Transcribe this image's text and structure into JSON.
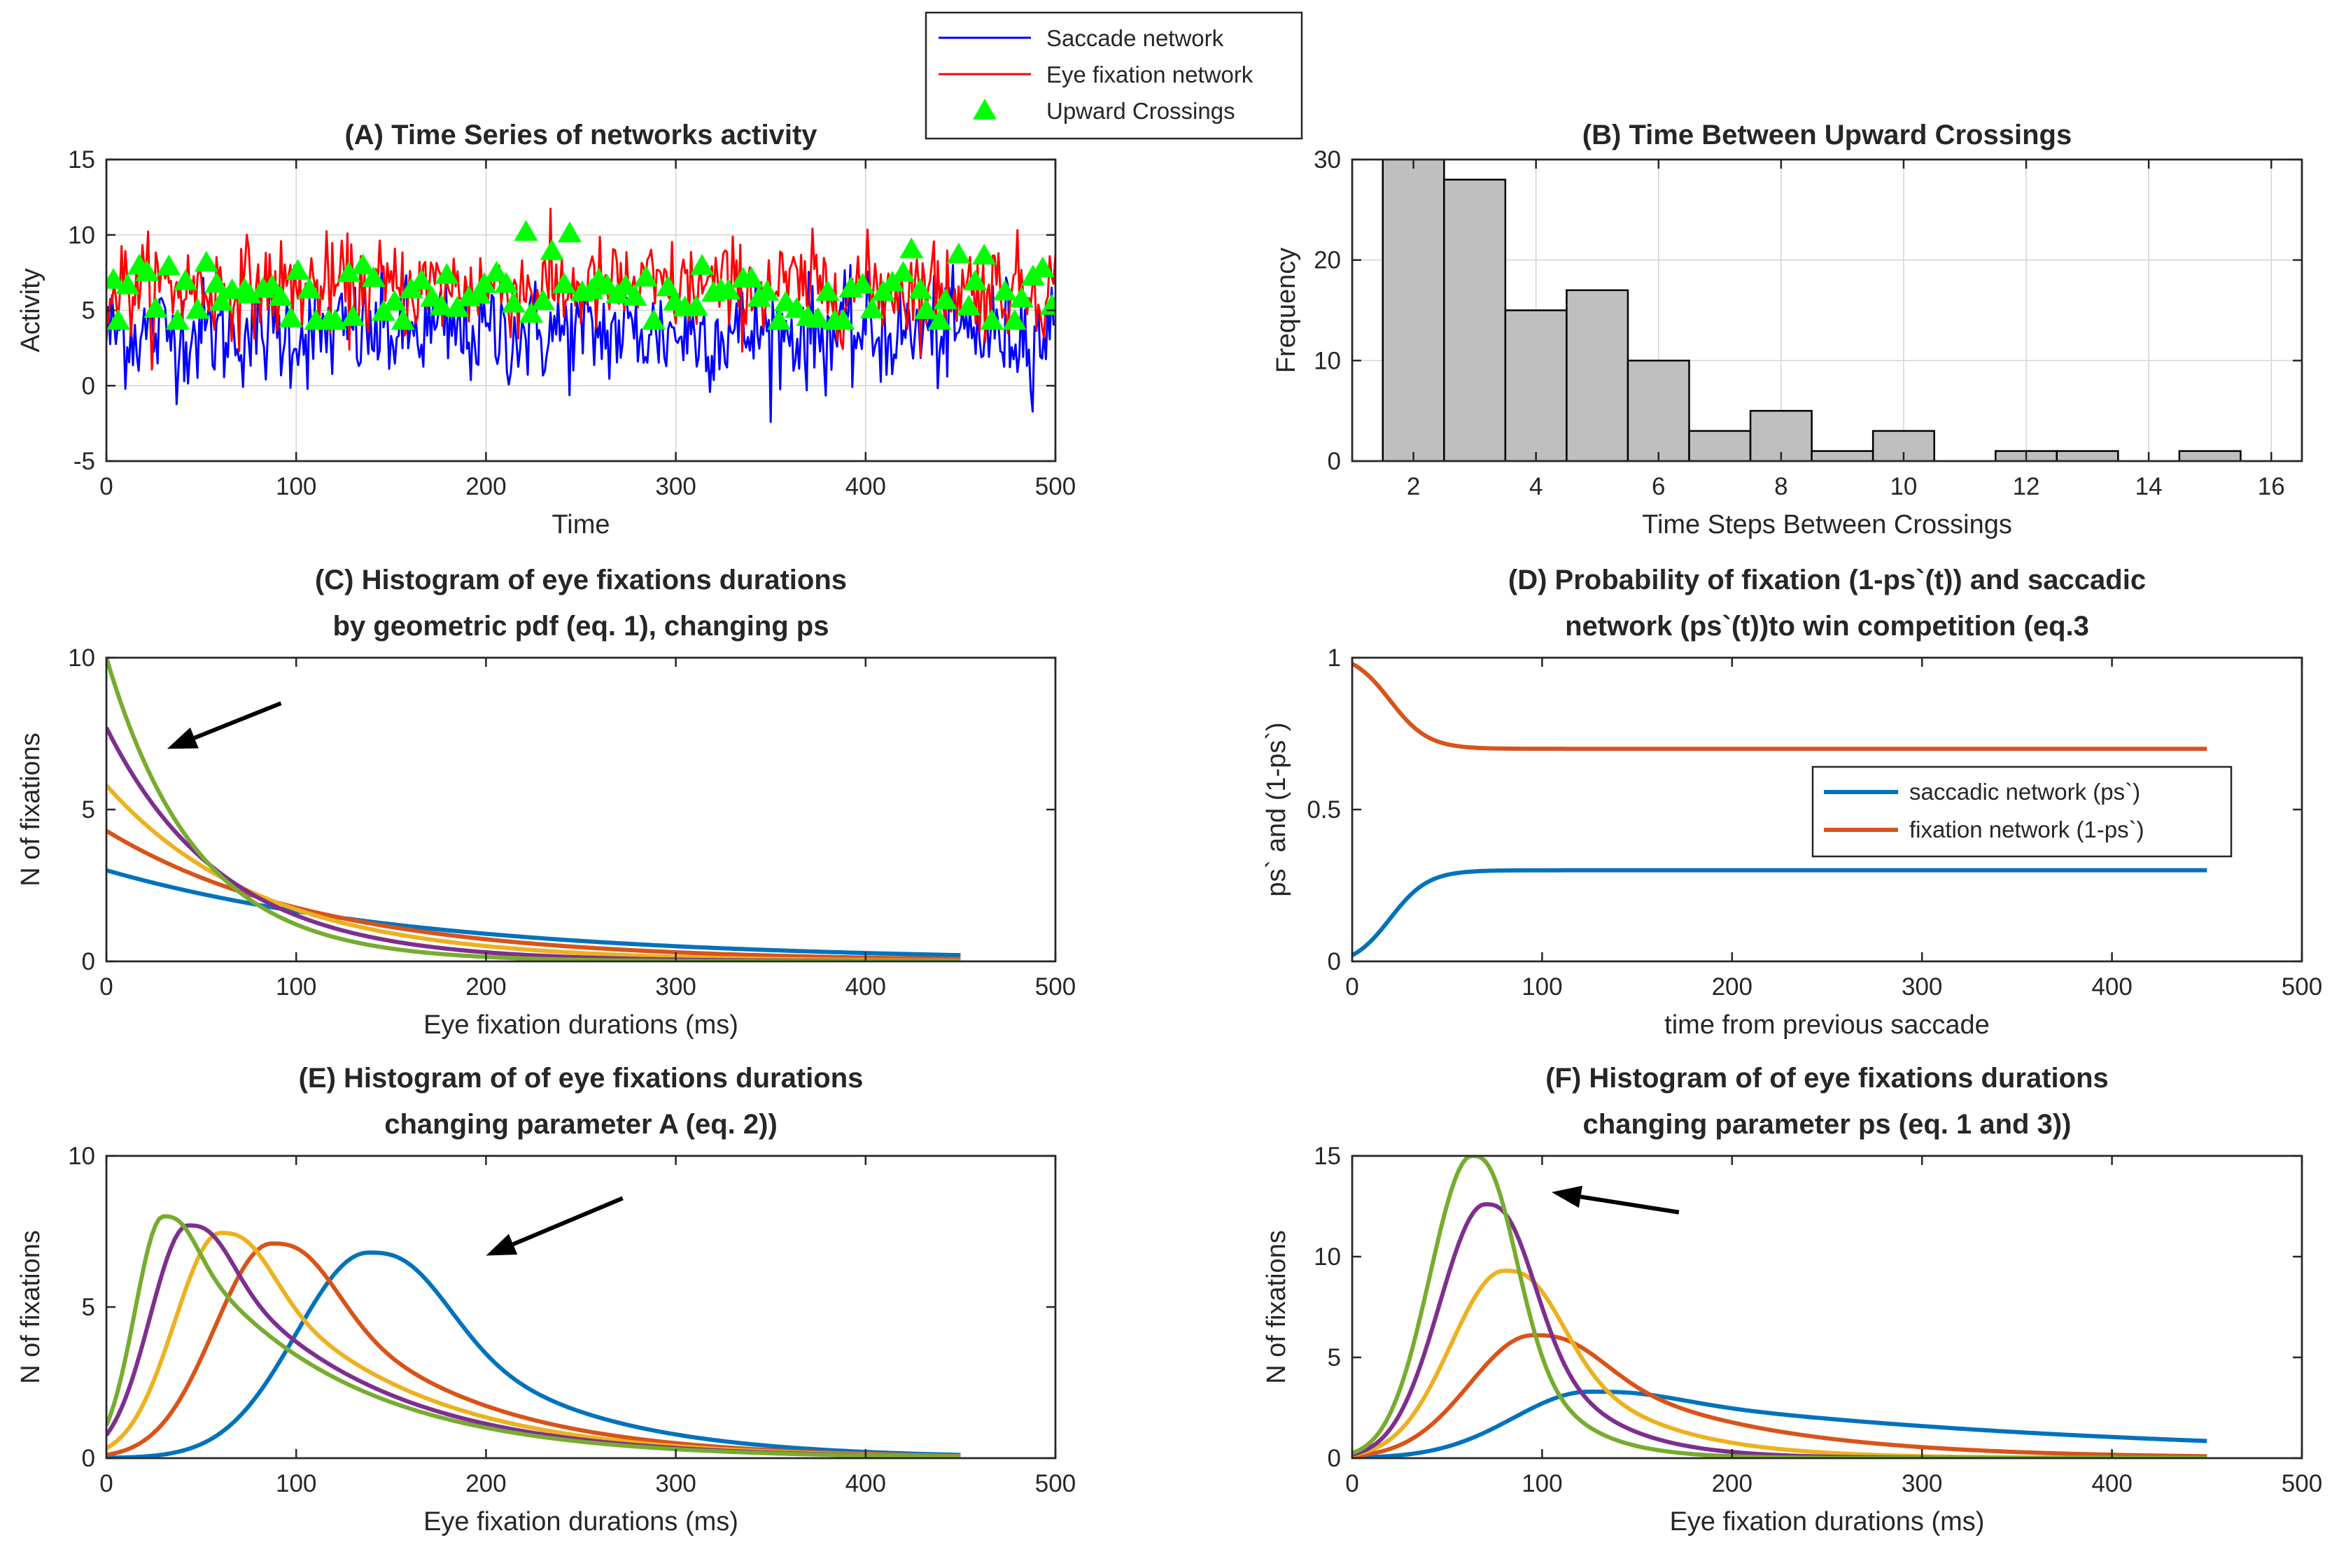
{
  "colors": {
    "blue": "#0000ff",
    "red": "#ff0000",
    "green": "#00ff00",
    "c1": "#0072bd",
    "c2": "#d95319",
    "c3": "#edb120",
    "c4": "#7e2f8e",
    "c5": "#77ac30",
    "hist_fill": "#bfbfbf",
    "axis": "#262626",
    "grid": "#d4d4d4",
    "arrow": "#000000"
  },
  "chart_data": [
    {
      "id": "A",
      "type": "line",
      "title": "(A) Time Series of networks activity",
      "xlabel": "Time",
      "ylabel": "Activity",
      "xlim": [
        0,
        500
      ],
      "ylim": [
        -5,
        15
      ],
      "xticks": [
        0,
        100,
        200,
        300,
        400,
        500
      ],
      "yticks": [
        -5,
        0,
        5,
        10,
        15
      ],
      "grid": true,
      "series": [
        {
          "name": "Saccade network",
          "color": "#0000ff",
          "mean": 3.5,
          "std": 1.8,
          "n": 500
        },
        {
          "name": "Eye fixation network",
          "color": "#ff0000",
          "mean": 6.5,
          "std": 1.6,
          "n": 500
        },
        {
          "name": "Upward Crossings",
          "color": "#00ff00",
          "marker": "triangle",
          "count": 101
        }
      ],
      "legend": {
        "position": "top-center",
        "items": [
          "Saccade network",
          "Eye fixation network",
          "Upward Crossings"
        ]
      }
    },
    {
      "id": "B",
      "type": "bar",
      "title": "(B) Time Between Upward Crossings",
      "xlabel": "Time Steps Between Crossings",
      "ylabel": "Frequency",
      "xlim": [
        1,
        16.5
      ],
      "ylim": [
        0,
        30
      ],
      "xticks": [
        2,
        4,
        6,
        8,
        10,
        12,
        14,
        16
      ],
      "yticks": [
        0,
        10,
        20,
        30
      ],
      "grid": true,
      "bin_width": 1,
      "bin_centers": [
        2,
        3,
        4,
        5,
        6,
        7,
        8,
        9,
        10,
        11,
        12,
        13,
        14,
        15
      ],
      "values": [
        30,
        28,
        15,
        17,
        10,
        3,
        5,
        1,
        3,
        0,
        1,
        1,
        0,
        1
      ]
    },
    {
      "id": "C",
      "type": "line",
      "title": [
        "(C) Histogram of eye fixations durations",
        "by geometric pdf (eq. 1), changing ps"
      ],
      "xlabel": "Eye fixation durations (ms)",
      "ylabel": "N of fixations",
      "xlim": [
        0,
        500
      ],
      "ylim": [
        0,
        10
      ],
      "xticks": [
        0,
        100,
        200,
        300,
        400,
        500
      ],
      "yticks": [
        0,
        5,
        10
      ],
      "grid": false,
      "model": "N(t) = A * ps * (1-ps)^(t/10)",
      "x_range": [
        0,
        450
      ],
      "series": [
        {
          "color": "#0072bd",
          "A": 3.0,
          "ps": 0.058
        },
        {
          "color": "#d95319",
          "A": 4.3,
          "ps": 0.085
        },
        {
          "color": "#edb120",
          "A": 5.8,
          "ps": 0.115
        },
        {
          "color": "#7e2f8e",
          "A": 7.7,
          "ps": 0.15
        },
        {
          "color": "#77ac30",
          "A": 10.0,
          "ps": 0.19
        }
      ],
      "annotation": "arrow"
    },
    {
      "id": "D",
      "type": "line",
      "title": [
        "(D) Probability of fixation (1-ps`(t)) and saccadic",
        "network (ps`(t))to win competition (eq.3"
      ],
      "xlabel": "time from previous saccade",
      "ylabel": "ps` and (1-ps`)",
      "xlim": [
        0,
        500
      ],
      "ylim": [
        0,
        1
      ],
      "xticks": [
        0,
        100,
        200,
        300,
        400,
        500
      ],
      "yticks": [
        0,
        0.5,
        1
      ],
      "grid": false,
      "x_range": [
        0,
        450
      ],
      "series": [
        {
          "name": "saccadic network (ps`)",
          "color": "#0072bd",
          "start": 0.02,
          "end": 0.3,
          "midpoint": 20,
          "rate": 10
        },
        {
          "name": "fixation network (1-ps`)",
          "color": "#d95319",
          "start": 0.98,
          "end": 0.7,
          "midpoint": 20,
          "rate": 10
        }
      ],
      "legend": {
        "position": "middle-right",
        "items": [
          "saccadic network (ps`)",
          "fixation network (1-ps`)"
        ]
      }
    },
    {
      "id": "E",
      "type": "line",
      "title": [
        "(E) Histogram of of eye fixations durations",
        "changing parameter A (eq. 2))"
      ],
      "xlabel": "Eye fixation durations (ms)",
      "ylabel": "N of fixations",
      "xlim": [
        0,
        500
      ],
      "ylim": [
        0,
        10
      ],
      "xticks": [
        0,
        100,
        200,
        300,
        400,
        500
      ],
      "yticks": [
        0,
        5,
        10
      ],
      "grid": false,
      "x_range": [
        0,
        450
      ],
      "series": [
        {
          "color": "#0072bd",
          "peak_x": 138,
          "peak_y": 6.8,
          "sigma_left": 38,
          "tau": 75
        },
        {
          "color": "#d95319",
          "peak_x": 87,
          "peak_y": 7.1,
          "sigma_left": 30,
          "tau": 80
        },
        {
          "color": "#edb120",
          "peak_x": 60,
          "peak_y": 7.45,
          "sigma_left": 24,
          "tau": 82
        },
        {
          "color": "#7e2f8e",
          "peak_x": 43,
          "peak_y": 7.7,
          "sigma_left": 20,
          "tau": 82
        },
        {
          "color": "#77ac30",
          "peak_x": 30,
          "peak_y": 8.0,
          "sigma_left": 15,
          "tau": 82
        }
      ],
      "annotation": "arrow"
    },
    {
      "id": "F",
      "type": "line",
      "title": [
        "(F) Histogram of of eye fixations durations",
        "changing parameter ps (eq. 1 and 3))"
      ],
      "xlabel": "Eye fixation durations (ms)",
      "ylabel": "N of fixations",
      "xlim": [
        0,
        500
      ],
      "ylim": [
        0,
        15
      ],
      "xticks": [
        0,
        100,
        200,
        300,
        400,
        500
      ],
      "yticks": [
        0,
        5,
        10,
        15
      ],
      "grid": false,
      "x_range": [
        0,
        450
      ],
      "series": [
        {
          "color": "#0072bd",
          "peak_x": 125,
          "peak_y": 3.3,
          "sigma_left": 40,
          "tau": 240
        },
        {
          "color": "#d95319",
          "peak_x": 95,
          "peak_y": 6.1,
          "sigma_left": 33,
          "tau": 85
        },
        {
          "color": "#edb120",
          "peak_x": 80,
          "peak_y": 9.3,
          "sigma_left": 28,
          "tau": 48
        },
        {
          "color": "#7e2f8e",
          "peak_x": 70,
          "peak_y": 12.6,
          "sigma_left": 24,
          "tau": 35
        },
        {
          "color": "#77ac30",
          "peak_x": 63,
          "peak_y": 15.0,
          "sigma_left": 22,
          "tau": 27
        }
      ],
      "annotation": "arrow"
    }
  ]
}
